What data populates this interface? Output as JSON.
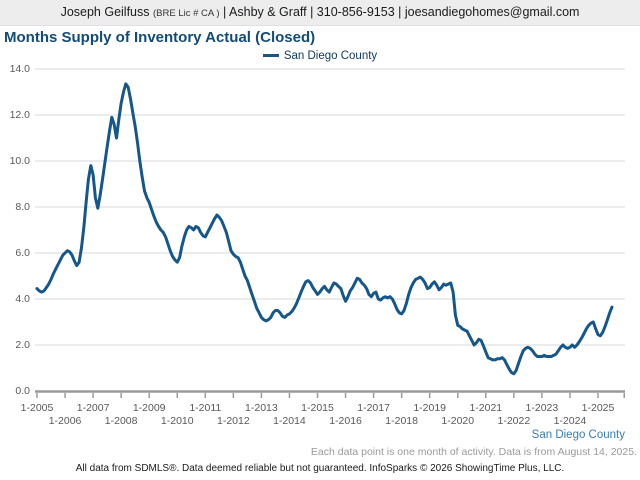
{
  "header": {
    "agent": "Joseph Geilfuss",
    "license": "(BRE Lic # CA )",
    "contact_info": "| Ashby & Graff | 310-856-9153 | joesandiegohomes@gmail.com"
  },
  "title": "Months Supply of Inventory Actual (Closed)",
  "legend": {
    "label": "San Diego County"
  },
  "footer": {
    "series_label": "San Diego County",
    "note": "Each data point is one month of activity. Data is from August 14, 2025.",
    "disclaimer": "All data from SDMLS®. Data deemed reliable but not guaranteed. InfoSparks © 2026 ShowingTime Plus, LLC."
  },
  "colors": {
    "line": "#15578b",
    "title": "#134b77",
    "series_label_text": "#3c7cb0",
    "grid": "#d9d9d9",
    "axis": "#9a9a9a",
    "tick_text": "#595959",
    "header_bg": "#ededed"
  },
  "chart_data": {
    "type": "line",
    "title": "Months Supply of Inventory Actual (Closed)",
    "ylabel": "",
    "xlabel": "",
    "ylim": [
      0,
      14
    ],
    "grid": "horizontal",
    "legend_position": "top-center",
    "interval": "monthly",
    "x_start": "1-2005",
    "x_end": "7-2025",
    "y_ticks": [
      {
        "label": "0.0",
        "value": 0
      },
      {
        "label": "2.0",
        "value": 2
      },
      {
        "label": "4.0",
        "value": 4
      },
      {
        "label": "6.0",
        "value": 6
      },
      {
        "label": "8.0",
        "value": 8
      },
      {
        "label": "10.0",
        "value": 10
      },
      {
        "label": "12.0",
        "value": 12
      },
      {
        "label": "14.0",
        "value": 14
      }
    ],
    "x_ticks": [
      {
        "label": "1-2005",
        "month_index": 0,
        "row": 1
      },
      {
        "label": "1-2006",
        "month_index": 12,
        "row": 2
      },
      {
        "label": "1-2007",
        "month_index": 24,
        "row": 1
      },
      {
        "label": "1-2008",
        "month_index": 36,
        "row": 2
      },
      {
        "label": "1-2009",
        "month_index": 48,
        "row": 1
      },
      {
        "label": "1-2010",
        "month_index": 60,
        "row": 2
      },
      {
        "label": "1-2011",
        "month_index": 72,
        "row": 1
      },
      {
        "label": "1-2012",
        "month_index": 84,
        "row": 2
      },
      {
        "label": "1-2013",
        "month_index": 96,
        "row": 1
      },
      {
        "label": "1-2014",
        "month_index": 108,
        "row": 2
      },
      {
        "label": "1-2015",
        "month_index": 120,
        "row": 1
      },
      {
        "label": "1-2016",
        "month_index": 132,
        "row": 2
      },
      {
        "label": "1-2017",
        "month_index": 144,
        "row": 1
      },
      {
        "label": "1-2018",
        "month_index": 156,
        "row": 2
      },
      {
        "label": "1-2019",
        "month_index": 168,
        "row": 1
      },
      {
        "label": "1-2020",
        "month_index": 180,
        "row": 2
      },
      {
        "label": "1-2021",
        "month_index": 192,
        "row": 1
      },
      {
        "label": "1-2022",
        "month_index": 204,
        "row": 2
      },
      {
        "label": "1-2023",
        "month_index": 216,
        "row": 1
      },
      {
        "label": "1-2024",
        "month_index": 228,
        "row": 2
      },
      {
        "label": "1-2025",
        "month_index": 240,
        "row": 1
      }
    ],
    "series": [
      {
        "name": "San Diego County",
        "start_month": "1-2005",
        "end_month": "7-2025",
        "values": [
          4.45,
          4.35,
          4.3,
          4.35,
          4.5,
          4.65,
          4.85,
          5.1,
          5.3,
          5.5,
          5.7,
          5.9,
          6.0,
          6.1,
          6.05,
          5.9,
          5.65,
          5.45,
          5.6,
          6.2,
          7.1,
          8.2,
          9.2,
          9.8,
          9.4,
          8.4,
          7.95,
          8.5,
          9.2,
          9.9,
          10.6,
          11.3,
          11.9,
          11.6,
          11.0,
          11.8,
          12.5,
          13.0,
          13.35,
          13.2,
          12.7,
          12.1,
          11.5,
          10.8,
          10.0,
          9.3,
          8.7,
          8.4,
          8.2,
          7.9,
          7.6,
          7.35,
          7.15,
          7.0,
          6.9,
          6.7,
          6.4,
          6.1,
          5.85,
          5.7,
          5.6,
          5.8,
          6.3,
          6.7,
          7.0,
          7.15,
          7.1,
          7.0,
          7.15,
          7.1,
          6.9,
          6.75,
          6.7,
          6.9,
          7.1,
          7.3,
          7.5,
          7.65,
          7.55,
          7.4,
          7.15,
          6.9,
          6.5,
          6.1,
          5.95,
          5.85,
          5.8,
          5.6,
          5.3,
          5.0,
          4.8,
          4.5,
          4.2,
          3.9,
          3.6,
          3.4,
          3.2,
          3.1,
          3.05,
          3.1,
          3.2,
          3.4,
          3.5,
          3.5,
          3.4,
          3.25,
          3.2,
          3.3,
          3.35,
          3.45,
          3.6,
          3.8,
          4.05,
          4.3,
          4.55,
          4.75,
          4.8,
          4.7,
          4.5,
          4.35,
          4.2,
          4.3,
          4.45,
          4.55,
          4.4,
          4.3,
          4.5,
          4.7,
          4.65,
          4.55,
          4.45,
          4.15,
          3.9,
          4.1,
          4.35,
          4.5,
          4.7,
          4.9,
          4.85,
          4.7,
          4.6,
          4.45,
          4.2,
          4.1,
          4.25,
          4.3,
          4.0,
          3.95,
          4.05,
          4.1,
          4.05,
          4.1,
          4.0,
          3.8,
          3.55,
          3.4,
          3.35,
          3.5,
          3.8,
          4.2,
          4.5,
          4.7,
          4.85,
          4.9,
          4.95,
          4.85,
          4.7,
          4.45,
          4.5,
          4.65,
          4.75,
          4.6,
          4.4,
          4.5,
          4.65,
          4.6,
          4.65,
          4.7,
          4.3,
          3.3,
          2.85,
          2.8,
          2.7,
          2.65,
          2.6,
          2.4,
          2.2,
          2.0,
          2.1,
          2.25,
          2.2,
          1.95,
          1.7,
          1.45,
          1.4,
          1.35,
          1.35,
          1.4,
          1.4,
          1.45,
          1.35,
          1.15,
          0.95,
          0.8,
          0.75,
          0.9,
          1.2,
          1.5,
          1.75,
          1.85,
          1.9,
          1.85,
          1.75,
          1.6,
          1.5,
          1.5,
          1.5,
          1.55,
          1.5,
          1.5,
          1.5,
          1.55,
          1.6,
          1.75,
          1.9,
          2.0,
          1.9,
          1.85,
          1.9,
          2.0,
          1.9,
          2.0,
          2.15,
          2.3,
          2.5,
          2.7,
          2.85,
          2.95,
          3.0,
          2.7,
          2.45,
          2.4,
          2.55,
          2.8,
          3.1,
          3.4,
          3.65
        ]
      }
    ]
  }
}
